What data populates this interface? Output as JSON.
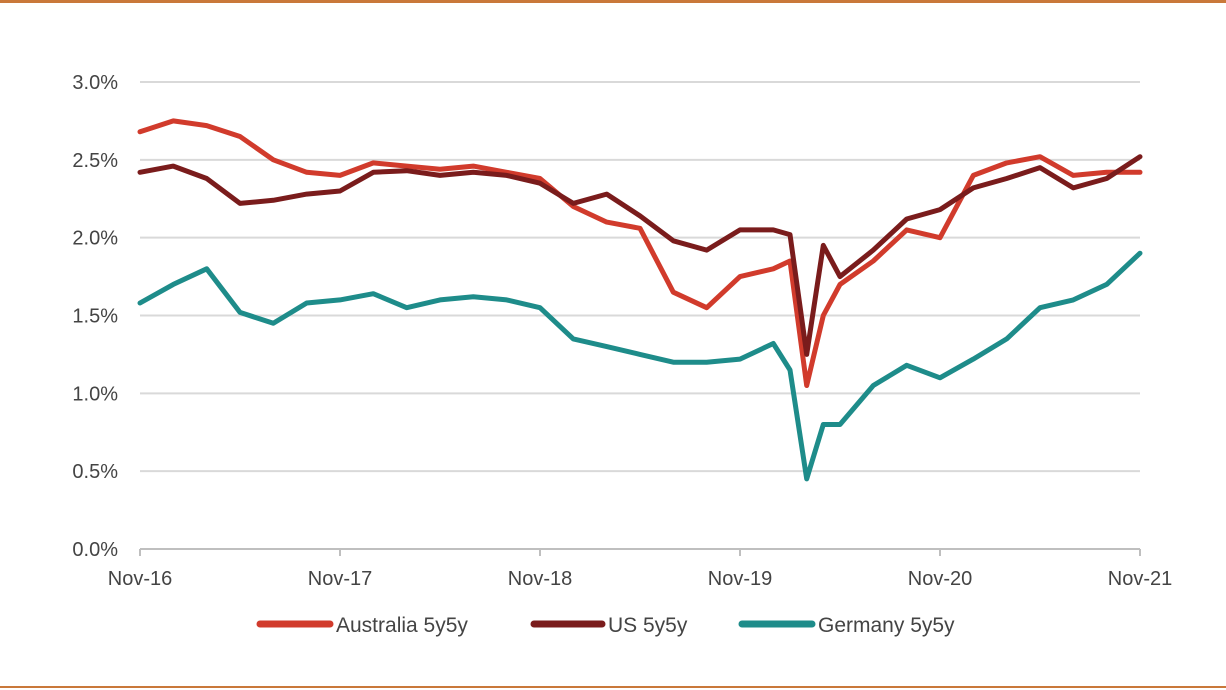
{
  "chart_data": {
    "type": "line",
    "title": "",
    "xlabel": "",
    "ylabel": "",
    "ylim": [
      0,
      3.0
    ],
    "y_ticks": [
      "0.0%",
      "0.5%",
      "1.0%",
      "1.5%",
      "2.0%",
      "2.5%",
      "3.0%"
    ],
    "y_tick_values": [
      0,
      0.5,
      1.0,
      1.5,
      2.0,
      2.5,
      3.0
    ],
    "x_ticks": [
      "Nov-16",
      "Nov-17",
      "Nov-18",
      "Nov-19",
      "Nov-20",
      "Nov-21"
    ],
    "grid": true,
    "legend": "bottom",
    "x": [
      "2016-11",
      "2017-01",
      "2017-03",
      "2017-05",
      "2017-07",
      "2017-09",
      "2017-11",
      "2018-01",
      "2018-03",
      "2018-05",
      "2018-07",
      "2018-09",
      "2018-11",
      "2019-01",
      "2019-03",
      "2019-05",
      "2019-07",
      "2019-09",
      "2019-11",
      "2020-01",
      "2020-02",
      "2020-03",
      "2020-04",
      "2020-05",
      "2020-07",
      "2020-09",
      "2020-11",
      "2021-01",
      "2021-03",
      "2021-05",
      "2021-07",
      "2021-09",
      "2021-11"
    ],
    "series": [
      {
        "name": "Australia 5y5y",
        "color": "#d13b2c",
        "values": [
          2.68,
          2.75,
          2.72,
          2.65,
          2.5,
          2.42,
          2.4,
          2.48,
          2.46,
          2.44,
          2.46,
          2.42,
          2.38,
          2.2,
          2.1,
          2.06,
          1.65,
          1.55,
          1.75,
          1.8,
          1.85,
          1.05,
          1.5,
          1.7,
          1.85,
          2.05,
          2.0,
          2.4,
          2.48,
          2.52,
          2.4,
          2.42,
          2.42
        ]
      },
      {
        "name": "US 5y5y",
        "color": "#7a1c1c",
        "values": [
          2.42,
          2.46,
          2.38,
          2.22,
          2.24,
          2.28,
          2.3,
          2.42,
          2.43,
          2.4,
          2.42,
          2.4,
          2.35,
          2.22,
          2.28,
          2.14,
          1.98,
          1.92,
          2.05,
          2.05,
          2.02,
          1.25,
          1.95,
          1.75,
          1.92,
          2.12,
          2.18,
          2.32,
          2.38,
          2.45,
          2.32,
          2.38,
          2.52
        ]
      },
      {
        "name": "Germany 5y5y",
        "color": "#1e8c8a",
        "values": [
          1.58,
          1.7,
          1.8,
          1.52,
          1.45,
          1.58,
          1.6,
          1.64,
          1.55,
          1.6,
          1.62,
          1.6,
          1.55,
          1.35,
          1.3,
          1.25,
          1.2,
          1.2,
          1.22,
          1.32,
          1.15,
          0.45,
          0.8,
          0.8,
          1.05,
          1.18,
          1.1,
          1.22,
          1.35,
          1.55,
          1.6,
          1.7,
          1.9
        ]
      }
    ]
  }
}
